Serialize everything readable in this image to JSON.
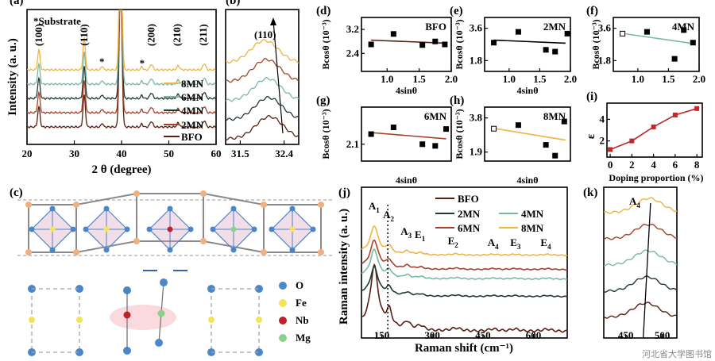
{
  "chart_data": [
    {
      "panel": "(a)",
      "type": "line",
      "xlabel": "2 θ (degree)",
      "ylabel": "Intensity (a. u.)",
      "xlim": [
        20,
        60
      ],
      "x_ticks": [
        "20",
        "30",
        "40",
        "50",
        "60"
      ],
      "legend_title": "Substrate",
      "peaks": [
        "(100)",
        "(110)",
        "(200)",
        "(210)",
        "(211)"
      ],
      "series": [
        {
          "name": "BFO",
          "color": "#5a1f0f",
          "offset": 0
        },
        {
          "name": "2MN",
          "color": "#a8402a",
          "offset": 1
        },
        {
          "name": "4MN",
          "color": "#203a2c",
          "offset": 2
        },
        {
          "name": "6MN",
          "color": "#7ab8a6",
          "offset": 3
        },
        {
          "name": "8MN",
          "color": "#f0b440",
          "offset": 4
        }
      ]
    },
    {
      "panel": "(b)",
      "type": "line",
      "xlim": [
        31.2,
        32.7
      ],
      "x_ticks": [
        "31.5",
        "32.4"
      ],
      "peak": "(110)",
      "series_colors": [
        "#5a1f0f",
        "#203a2c",
        "#7ab8a6",
        "#a8402a",
        "#f0b440"
      ]
    },
    {
      "panel": "(d)",
      "type": "scatter",
      "title": "BFO",
      "xlabel": "4sinθ",
      "ylabel": "Bcosθ (10⁻³)",
      "xlim": [
        0.6,
        2.0
      ],
      "ylim": [
        1.8,
        3.6
      ],
      "x_ticks": [
        "1.0",
        "1.5",
        "2.0"
      ],
      "y_ticks": [
        "3.2",
        "2.4"
      ],
      "x": [
        0.75,
        1.1,
        1.55,
        1.75,
        1.9
      ],
      "y": [
        2.7,
        3.05,
        2.68,
        2.8,
        2.7
      ],
      "fit_color": "#5a1f0f"
    },
    {
      "panel": "(e)",
      "type": "scatter",
      "title": "2MN",
      "xlabel": "4sinθ",
      "ylabel": "Bcosθ (10⁻³)",
      "xlim": [
        0.6,
        2.0
      ],
      "ylim": [
        1.2,
        4.2
      ],
      "x_ticks": [
        "1.0",
        "1.5",
        "2.0"
      ],
      "y_ticks": [
        "3.6",
        "1.8"
      ],
      "x": [
        0.75,
        1.15,
        1.6,
        1.75,
        1.95
      ],
      "y": [
        2.8,
        3.4,
        2.4,
        2.3,
        3.3
      ],
      "fit_color": "#000000"
    },
    {
      "panel": "(f)",
      "type": "scatter",
      "title": "4MN",
      "ylabel": "Bcosθ (10⁻³)",
      "xlim": [
        0.6,
        2.0
      ],
      "ylim": [
        1.2,
        4.2
      ],
      "x_ticks": [
        "1.0",
        "1.5",
        "2.0"
      ],
      "y_ticks": [
        "3.6",
        "1.8"
      ],
      "x": [
        0.75,
        1.15,
        1.6,
        1.75,
        1.9
      ],
      "y": [
        3.3,
        3.4,
        1.9,
        3.5,
        2.8
      ],
      "fit_color": "#7ab8a6"
    },
    {
      "panel": "(g)",
      "type": "scatter",
      "title": "6MN",
      "xlabel": "4sinθ",
      "ylabel": "Bcosθ (10⁻³)",
      "xlim": [
        0.6,
        2.0
      ],
      "ylim": [
        1.6,
        3.2
      ],
      "x_ticks": [],
      "y_ticks": [
        "2.1"
      ],
      "x": [
        0.75,
        1.1,
        1.55,
        1.75,
        1.92
      ],
      "y": [
        2.4,
        2.6,
        2.1,
        2.05,
        2.55
      ],
      "fit_color": "#a8402a"
    },
    {
      "panel": "(h)",
      "type": "scatter",
      "title": "8MN",
      "xlabel": "4sinθ",
      "ylabel": "Bcosθ (10⁻³)",
      "xlim": [
        0.6,
        2.0
      ],
      "ylim": [
        1.4,
        4.4
      ],
      "x_ticks": [],
      "y_ticks": [
        "3.8",
        "1.9"
      ],
      "x": [
        0.75,
        1.15,
        1.6,
        1.75,
        1.9
      ],
      "y": [
        3.2,
        3.4,
        2.3,
        1.7,
        3.6
      ],
      "fit_color": "#f0b440"
    },
    {
      "panel": "(i)",
      "type": "line",
      "xlabel": "Doping proportion (%)",
      "ylabel": "ε",
      "xlim": [
        -0.3,
        8.5
      ],
      "ylim": [
        0.5,
        5.5
      ],
      "x_ticks": [
        "0",
        "2",
        "4",
        "6",
        "8"
      ],
      "y_ticks": [
        "4",
        "2"
      ],
      "x": [
        0,
        2,
        4,
        6,
        8
      ],
      "y": [
        1.2,
        2.0,
        3.3,
        4.4,
        5.0
      ],
      "color": "#c0282a"
    },
    {
      "panel": "(j)",
      "type": "line",
      "xlabel": "Raman shift (cm⁻¹)",
      "ylabel": "Raman intensity (a. u.)",
      "xlim": [
        90,
        700
      ],
      "x_ticks": [
        "150",
        "300",
        "450",
        "600"
      ],
      "modes": [
        {
          "label": "A",
          "sub": "1",
          "x": 125
        },
        {
          "label": "A",
          "sub": "2",
          "x": 168
        },
        {
          "label": "A",
          "sub": "3",
          "x": 220
        },
        {
          "label": "E",
          "sub": "1",
          "x": 262
        },
        {
          "label": "E",
          "sub": "2",
          "x": 360
        },
        {
          "label": "A",
          "sub": "4",
          "x": 478
        },
        {
          "label": "E",
          "sub": "3",
          "x": 545
        },
        {
          "label": "E",
          "sub": "4",
          "x": 635
        }
      ],
      "series": [
        {
          "name": "BFO",
          "color": "#5a1f0f",
          "offset": 0
        },
        {
          "name": "2MN",
          "color": "#203a2c",
          "offset": 1
        },
        {
          "name": "4MN",
          "color": "#7ab8a6",
          "offset": 2
        },
        {
          "name": "6MN",
          "color": "#a8402a",
          "offset": 3
        },
        {
          "name": "8MN",
          "color": "#f0b440",
          "offset": 4
        }
      ]
    },
    {
      "panel": "(k)",
      "type": "line",
      "xlim": [
        420,
        520
      ],
      "x_ticks": [
        "450",
        "500"
      ],
      "mode": {
        "label": "A",
        "sub": "4"
      },
      "series_colors": [
        "#5a1f0f",
        "#203a2c",
        "#7ab8a6",
        "#a8402a",
        "#f0b440"
      ]
    }
  ],
  "structure": {
    "panel": "(c)",
    "legend": [
      {
        "name": "O",
        "color": "#4a86c8"
      },
      {
        "name": "Fe",
        "color": "#f2e35a"
      },
      {
        "name": "Nb",
        "color": "#c0202a"
      },
      {
        "name": "Mg",
        "color": "#8ed08a"
      }
    ]
  },
  "watermark": "河北省大学图书馆"
}
